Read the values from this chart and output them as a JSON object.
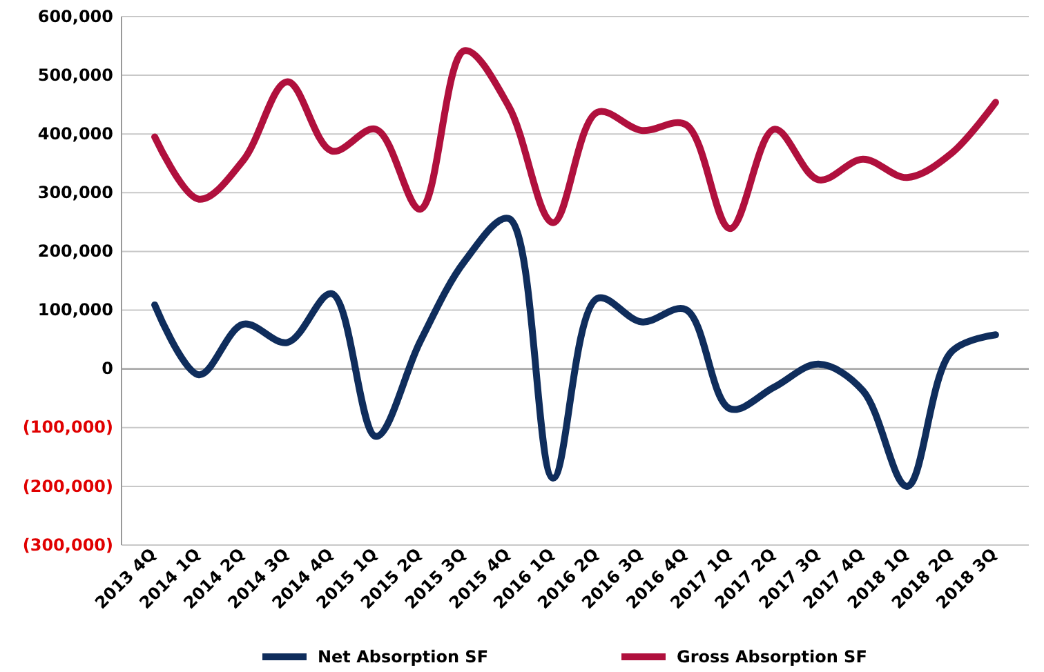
{
  "chart_data": {
    "type": "line",
    "categories": [
      "2013 4Q",
      "2014 1Q",
      "2014 2Q",
      "2014 3Q",
      "2014 4Q",
      "2015 1Q",
      "2015 2Q",
      "2015 3Q",
      "2015 4Q",
      "2016 1Q",
      "2016 2Q",
      "2016 3Q",
      "2016 4Q",
      "2017 1Q",
      "2017 2Q",
      "2017 3Q",
      "2017 4Q",
      "2018 1Q",
      "2018 2Q",
      "2018 3Q"
    ],
    "series": [
      {
        "name": "Net Absorption SF",
        "color": "#0f2d5c",
        "values": [
          109000,
          -10000,
          76000,
          45000,
          128000,
          -115000,
          47000,
          183000,
          256000,
          -186000,
          120000,
          80000,
          101000,
          -68000,
          -31000,
          8000,
          -37000,
          -200000,
          29000,
          58000
        ]
      },
      {
        "name": "Gross Absorption SF",
        "color": "#b0103d",
        "values": [
          395000,
          289000,
          355000,
          489000,
          371000,
          408000,
          272000,
          542000,
          447000,
          249000,
          437000,
          406000,
          416000,
          239000,
          408000,
          322000,
          357000,
          326000,
          367000,
          454000
        ]
      }
    ],
    "ylim": [
      -300000,
      600000
    ],
    "yticks": [
      {
        "value": -300000,
        "label": "(300,000)"
      },
      {
        "value": -200000,
        "label": "(200,000)"
      },
      {
        "value": -100000,
        "label": "(100,000)"
      },
      {
        "value": 0,
        "label": "0"
      },
      {
        "value": 100000,
        "label": "100,000"
      },
      {
        "value": 200000,
        "label": "200,000"
      },
      {
        "value": 300000,
        "label": "300,000"
      },
      {
        "value": 400000,
        "label": "400,000"
      },
      {
        "value": 500000,
        "label": "500,000"
      },
      {
        "value": 600000,
        "label": "600,000"
      }
    ],
    "grid": "y",
    "legend": "bottom",
    "marker": "none",
    "line_style": "solid"
  }
}
